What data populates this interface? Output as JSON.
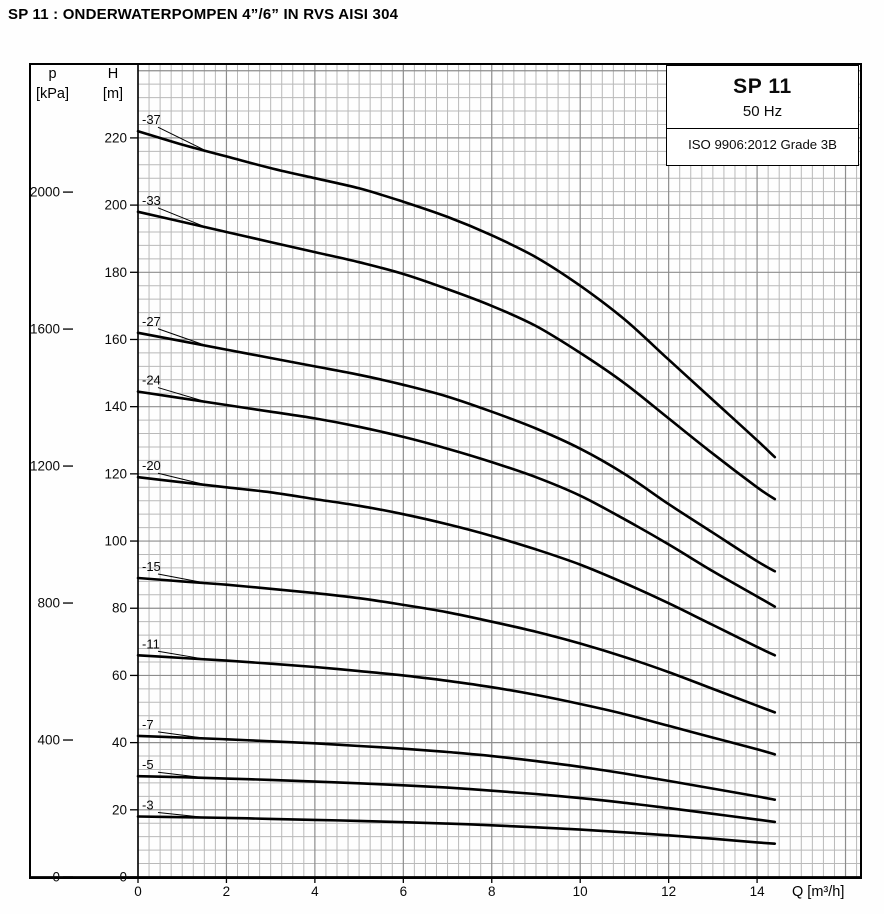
{
  "page": {
    "title": "SP 11 : ONDERWATERPOMPEN 4”/6” IN RVS AISI 304"
  },
  "info_box": {
    "model": "SP 11",
    "frequency": "50 Hz",
    "standard": "ISO 9906:2012 Grade 3B"
  },
  "axes": {
    "pressure": {
      "symbol": "p",
      "unit": "[kPa]",
      "ticks": [
        0,
        400,
        800,
        1200,
        1600,
        2000
      ]
    },
    "head": {
      "symbol": "H",
      "unit": "[m]",
      "ticks": [
        0,
        20,
        40,
        60,
        80,
        100,
        120,
        140,
        160,
        180,
        200,
        220
      ]
    },
    "flow": {
      "unit_label": "Q [m³/h]",
      "ticks": [
        0,
        2,
        4,
        6,
        8,
        10,
        12,
        14
      ]
    }
  },
  "colors": {
    "curve": "#000000",
    "grid_minor": "#b9b9b9",
    "grid_major": "#8d8d8d",
    "frame": "#000000",
    "text": "#0a0a0a"
  },
  "chart_data": {
    "type": "line",
    "title": "SP 11 pump performance curves, 50 Hz (ISO 9906:2012 Grade 3B)",
    "xlabel": "Q [m³/h]",
    "ylabel": "H [m]",
    "y2label": "p [kPa]",
    "xlim": [
      0,
      16.35
    ],
    "ylim": [
      0,
      242
    ],
    "grid": {
      "on": true,
      "minor_q": 0.25,
      "minor_h": 4,
      "major_q": 2,
      "major_h": 20
    },
    "kpa_per_m": 9.81,
    "legend_position": "top-right",
    "series": [
      {
        "name": "-37",
        "points": [
          [
            0,
            222
          ],
          [
            1,
            218
          ],
          [
            2,
            214.5
          ],
          [
            3,
            211
          ],
          [
            4,
            208
          ],
          [
            5,
            205
          ],
          [
            6,
            201
          ],
          [
            7,
            196.5
          ],
          [
            8,
            191
          ],
          [
            9,
            184.5
          ],
          [
            10,
            176
          ],
          [
            11,
            166
          ],
          [
            12,
            154
          ],
          [
            13,
            142
          ],
          [
            14,
            130
          ],
          [
            14.4,
            125
          ]
        ]
      },
      {
        "name": "-33",
        "points": [
          [
            0,
            198
          ],
          [
            1,
            195
          ],
          [
            2,
            192
          ],
          [
            3,
            189
          ],
          [
            4,
            186
          ],
          [
            5,
            183
          ],
          [
            6,
            179.5
          ],
          [
            7,
            175
          ],
          [
            8,
            170
          ],
          [
            9,
            164
          ],
          [
            10,
            156
          ],
          [
            11,
            147
          ],
          [
            12,
            136.5
          ],
          [
            13,
            126
          ],
          [
            14,
            116
          ],
          [
            14.4,
            112.5
          ]
        ]
      },
      {
        "name": "-27",
        "points": [
          [
            0,
            162
          ],
          [
            1,
            159.5
          ],
          [
            2,
            157
          ],
          [
            3,
            154.5
          ],
          [
            4,
            152
          ],
          [
            5,
            149.5
          ],
          [
            6,
            146.5
          ],
          [
            7,
            143
          ],
          [
            8,
            138.5
          ],
          [
            9,
            133.5
          ],
          [
            10,
            127.5
          ],
          [
            11,
            120
          ],
          [
            12,
            111
          ],
          [
            13,
            102.5
          ],
          [
            14,
            94
          ],
          [
            14.4,
            91
          ]
        ]
      },
      {
        "name": "-24",
        "points": [
          [
            0,
            144.5
          ],
          [
            1,
            142.5
          ],
          [
            2,
            140.5
          ],
          [
            3,
            138.5
          ],
          [
            4,
            136.5
          ],
          [
            5,
            134
          ],
          [
            6,
            131
          ],
          [
            7,
            127.5
          ],
          [
            8,
            123.5
          ],
          [
            9,
            119
          ],
          [
            10,
            113.5
          ],
          [
            11,
            106.5
          ],
          [
            12,
            99
          ],
          [
            13,
            91
          ],
          [
            14,
            83.5
          ],
          [
            14.4,
            80.5
          ]
        ]
      },
      {
        "name": "-20",
        "points": [
          [
            0,
            119
          ],
          [
            1,
            117.5
          ],
          [
            2,
            116
          ],
          [
            3,
            114.5
          ],
          [
            4,
            112.5
          ],
          [
            5,
            110.5
          ],
          [
            6,
            108
          ],
          [
            7,
            105
          ],
          [
            8,
            101.5
          ],
          [
            9,
            97.5
          ],
          [
            10,
            93
          ],
          [
            11,
            87.5
          ],
          [
            12,
            81.5
          ],
          [
            13,
            75
          ],
          [
            14,
            68.5
          ],
          [
            14.4,
            66
          ]
        ]
      },
      {
        "name": "-15",
        "points": [
          [
            0,
            89
          ],
          [
            1,
            88
          ],
          [
            2,
            87
          ],
          [
            3,
            85.8
          ],
          [
            4,
            84.5
          ],
          [
            5,
            83
          ],
          [
            6,
            81
          ],
          [
            7,
            78.8
          ],
          [
            8,
            76
          ],
          [
            9,
            73
          ],
          [
            10,
            69.5
          ],
          [
            11,
            65.5
          ],
          [
            12,
            61
          ],
          [
            13,
            56
          ],
          [
            14,
            51
          ],
          [
            14.4,
            49
          ]
        ]
      },
      {
        "name": "-11",
        "points": [
          [
            0,
            66
          ],
          [
            1,
            65.2
          ],
          [
            2,
            64.4
          ],
          [
            3,
            63.5
          ],
          [
            4,
            62.5
          ],
          [
            5,
            61.3
          ],
          [
            6,
            60
          ],
          [
            7,
            58.4
          ],
          [
            8,
            56.5
          ],
          [
            9,
            54.2
          ],
          [
            10,
            51.5
          ],
          [
            11,
            48.5
          ],
          [
            12,
            45
          ],
          [
            13,
            41.5
          ],
          [
            14,
            38
          ],
          [
            14.4,
            36.5
          ]
        ]
      },
      {
        "name": "-7",
        "points": [
          [
            0,
            42
          ],
          [
            1,
            41.5
          ],
          [
            2,
            41
          ],
          [
            3,
            40.4
          ],
          [
            4,
            39.8
          ],
          [
            5,
            39
          ],
          [
            6,
            38.2
          ],
          [
            7,
            37.2
          ],
          [
            8,
            36
          ],
          [
            9,
            34.5
          ],
          [
            10,
            32.8
          ],
          [
            11,
            30.8
          ],
          [
            12,
            28.6
          ],
          [
            13,
            26.3
          ],
          [
            14,
            24
          ],
          [
            14.4,
            23
          ]
        ]
      },
      {
        "name": "-5",
        "points": [
          [
            0,
            30
          ],
          [
            1,
            29.7
          ],
          [
            2,
            29.3
          ],
          [
            3,
            28.9
          ],
          [
            4,
            28.4
          ],
          [
            5,
            27.9
          ],
          [
            6,
            27.3
          ],
          [
            7,
            26.6
          ],
          [
            8,
            25.7
          ],
          [
            9,
            24.7
          ],
          [
            10,
            23.5
          ],
          [
            11,
            22.1
          ],
          [
            12,
            20.5
          ],
          [
            13,
            18.8
          ],
          [
            14,
            17.1
          ],
          [
            14.4,
            16.4
          ]
        ]
      },
      {
        "name": "-3",
        "points": [
          [
            0,
            18
          ],
          [
            1,
            17.8
          ],
          [
            2,
            17.6
          ],
          [
            3,
            17.3
          ],
          [
            4,
            17
          ],
          [
            5,
            16.7
          ],
          [
            6,
            16.3
          ],
          [
            7,
            15.9
          ],
          [
            8,
            15.4
          ],
          [
            9,
            14.8
          ],
          [
            10,
            14.1
          ],
          [
            11,
            13.3
          ],
          [
            12,
            12.4
          ],
          [
            13,
            11.4
          ],
          [
            14,
            10.3
          ],
          [
            14.4,
            9.9
          ]
        ]
      }
    ]
  }
}
